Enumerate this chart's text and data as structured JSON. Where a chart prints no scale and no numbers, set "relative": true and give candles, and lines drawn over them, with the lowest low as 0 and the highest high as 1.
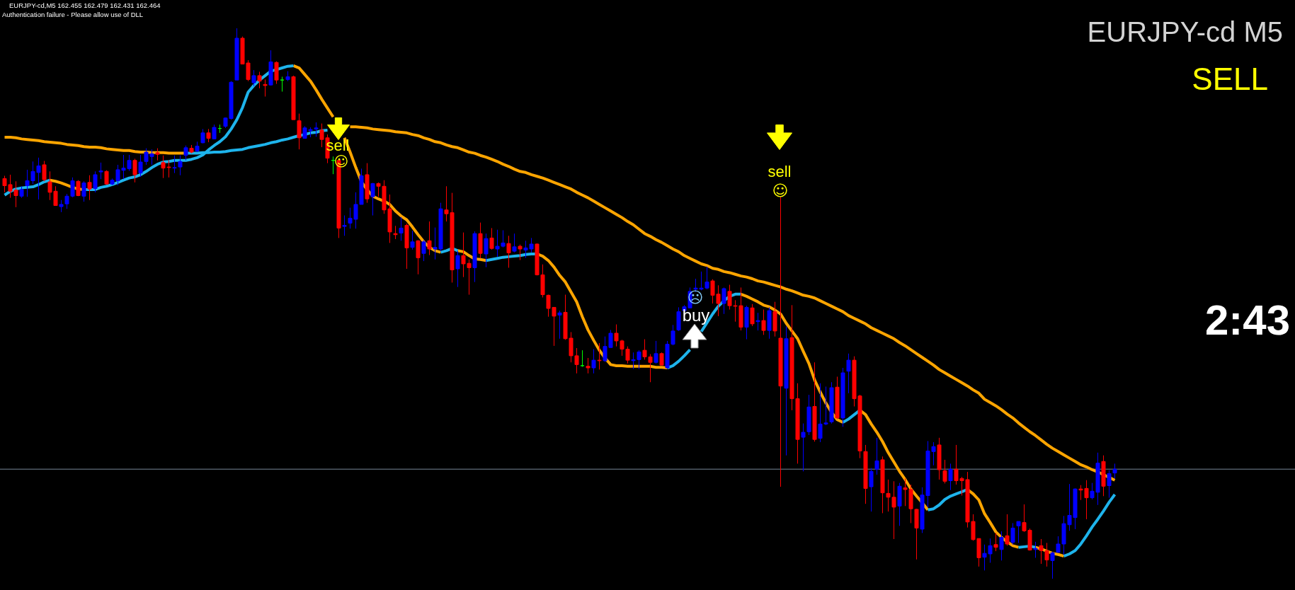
{
  "chart_data": {
    "type": "candlestick",
    "title": "EURJPY-cd M5",
    "annotations": [
      "EURJPY-cd,M5 162.455 162.479 162.431 162.464",
      "Authentication failure - Please allow use of DLL",
      "SELL",
      "2:43",
      "sell",
      "☺",
      "sell",
      "☺",
      "☹",
      "buy"
    ],
    "relative": true,
    "categories": [
      null,
      null,
      null,
      null,
      null,
      null,
      null,
      null,
      null,
      null,
      null,
      null,
      null,
      null,
      null,
      null,
      null,
      null,
      null,
      null,
      null,
      null,
      null,
      null,
      null,
      null,
      null,
      null,
      null,
      null,
      null,
      null,
      null,
      null,
      null,
      null,
      null,
      null,
      null,
      null,
      null,
      null,
      null,
      null,
      null,
      null,
      null,
      null,
      null,
      null,
      null,
      null,
      null,
      null,
      null,
      null,
      null,
      null,
      null,
      null,
      null,
      null,
      null,
      null,
      null,
      null,
      null,
      null,
      null,
      null,
      null,
      null,
      null,
      null,
      null,
      null,
      null,
      null,
      null,
      null,
      null,
      null,
      null,
      null,
      null,
      null,
      null,
      null,
      null,
      null,
      null,
      null,
      null,
      null,
      null,
      null,
      null,
      null,
      null,
      null,
      null,
      null,
      null,
      null,
      null,
      null,
      null,
      null,
      null,
      null,
      null,
      null,
      null,
      null,
      null,
      null,
      null,
      null,
      null,
      null,
      null,
      null,
      null,
      null,
      null,
      null,
      null,
      null,
      null,
      null,
      null,
      null,
      null,
      null,
      null,
      null,
      null,
      null,
      null,
      null,
      null,
      null,
      null,
      null,
      null,
      null,
      null,
      null,
      null,
      null,
      null,
      null,
      null,
      null,
      null,
      null,
      null,
      null,
      null,
      null,
      null,
      null,
      null,
      null,
      null,
      null,
      null,
      null,
      null,
      null,
      null,
      null,
      null,
      null,
      null,
      null,
      null,
      null,
      null,
      null,
      null,
      null,
      null,
      null,
      null,
      null,
      null,
      null,
      null,
      null,
      null,
      null,
      null,
      null,
      null,
      null,
      null
    ],
    "ohlc": [
      [
        0.727,
        0.732,
        0.702,
        0.714
      ],
      [
        0.716,
        0.734,
        0.692,
        0.704
      ],
      [
        0.706,
        0.722,
        0.675,
        0.696
      ],
      [
        0.695,
        0.713,
        0.692,
        0.707
      ],
      [
        0.714,
        0.743,
        0.694,
        0.723
      ],
      [
        0.723,
        0.758,
        0.717,
        0.74
      ],
      [
        0.738,
        0.765,
        0.689,
        0.75
      ],
      [
        0.752,
        0.759,
        0.722,
        0.725
      ],
      [
        0.721,
        0.74,
        0.688,
        0.702
      ],
      [
        0.704,
        0.713,
        0.678,
        0.678
      ],
      [
        0.676,
        0.688,
        0.666,
        0.68
      ],
      [
        0.681,
        0.699,
        0.672,
        0.695
      ],
      [
        0.695,
        0.729,
        0.693,
        0.723
      ],
      [
        0.722,
        0.724,
        0.695,
        0.696
      ],
      [
        0.695,
        0.722,
        0.685,
        0.719
      ],
      [
        0.72,
        0.733,
        0.688,
        0.708
      ],
      [
        0.709,
        0.74,
        0.702,
        0.734
      ],
      [
        0.739,
        0.756,
        0.726,
        0.741
      ],
      [
        0.74,
        0.742,
        0.716,
        0.717
      ],
      [
        0.717,
        0.727,
        0.715,
        0.724
      ],
      [
        0.723,
        0.752,
        0.715,
        0.743
      ],
      [
        0.742,
        0.77,
        0.726,
        0.746
      ],
      [
        0.745,
        0.77,
        0.741,
        0.76
      ],
      [
        0.76,
        0.763,
        0.72,
        0.734
      ],
      [
        0.737,
        0.77,
        0.73,
        0.757
      ],
      [
        0.758,
        0.782,
        0.752,
        0.775
      ],
      [
        0.767,
        0.78,
        0.752,
        0.772
      ],
      [
        0.774,
        0.782,
        0.76,
        0.771
      ],
      [
        0.756,
        0.769,
        0.728,
        0.746
      ],
      [
        0.748,
        0.76,
        0.729,
        0.747
      ],
      [
        0.746,
        0.769,
        0.737,
        0.747
      ],
      [
        0.748,
        0.769,
        0.733,
        0.758
      ],
      [
        0.769,
        0.787,
        0.76,
        0.783
      ],
      [
        0.782,
        0.788,
        0.773,
        0.775
      ],
      [
        0.777,
        0.794,
        0.775,
        0.786
      ],
      [
        0.792,
        0.817,
        0.791,
        0.81
      ],
      [
        0.81,
        0.817,
        0.793,
        0.8
      ],
      [
        0.799,
        0.825,
        0.799,
        0.82
      ],
      [
        0.818,
        0.825,
        0.81,
        0.818
      ],
      [
        0.822,
        0.838,
        0.819,
        0.837
      ],
      [
        0.836,
        0.904,
        0.834,
        0.902
      ],
      [
        0.906,
        1.0,
        0.906,
        0.982
      ],
      [
        0.982,
        0.985,
        0.935,
        0.935
      ],
      [
        0.937,
        0.942,
        0.904,
        0.907
      ],
      [
        0.901,
        0.924,
        0.895,
        0.914
      ],
      [
        0.914,
        0.921,
        0.891,
        0.904
      ],
      [
        0.898,
        0.907,
        0.876,
        0.896
      ],
      [
        0.897,
        0.96,
        0.896,
        0.939
      ],
      [
        0.938,
        0.94,
        0.899,
        0.906
      ],
      [
        0.906,
        0.912,
        0.885,
        0.906
      ],
      [
        0.907,
        0.922,
        0.904,
        0.912
      ],
      [
        0.912,
        0.914,
        0.834,
        0.834
      ],
      [
        0.832,
        0.845,
        0.78,
        0.801
      ],
      [
        0.8,
        0.822,
        0.8,
        0.819
      ],
      [
        0.814,
        0.82,
        0.802,
        0.816
      ],
      [
        0.817,
        0.829,
        0.803,
        0.819
      ],
      [
        0.815,
        0.827,
        0.784,
        0.798
      ],
      [
        0.801,
        0.807,
        0.755,
        0.764
      ],
      [
        0.76,
        0.767,
        0.735,
        0.76
      ],
      [
        0.76,
        0.761,
        0.619,
        0.637
      ],
      [
        0.64,
        0.66,
        0.623,
        0.642
      ],
      [
        0.646,
        0.674,
        0.636,
        0.655
      ],
      [
        0.653,
        0.702,
        0.636,
        0.68
      ],
      [
        0.68,
        0.745,
        0.68,
        0.732
      ],
      [
        0.734,
        0.755,
        0.683,
        0.69
      ],
      [
        0.694,
        0.719,
        0.66,
        0.718
      ],
      [
        0.718,
        0.72,
        0.694,
        0.713
      ],
      [
        0.713,
        0.724,
        0.663,
        0.67
      ],
      [
        0.672,
        0.698,
        0.61,
        0.63
      ],
      [
        0.627,
        0.641,
        0.617,
        0.625
      ],
      [
        0.628,
        0.657,
        0.614,
        0.637
      ],
      [
        0.642,
        0.645,
        0.563,
        0.601
      ],
      [
        0.602,
        0.632,
        0.598,
        0.612
      ],
      [
        0.614,
        0.615,
        0.553,
        0.583
      ],
      [
        0.591,
        0.615,
        0.577,
        0.612
      ],
      [
        0.614,
        0.649,
        0.588,
        0.599
      ],
      [
        0.599,
        0.638,
        0.58,
        0.602
      ],
      [
        0.599,
        0.683,
        0.595,
        0.672
      ],
      [
        0.67,
        0.713,
        0.649,
        0.663
      ],
      [
        0.665,
        0.701,
        0.538,
        0.561
      ],
      [
        0.563,
        0.595,
        0.53,
        0.587
      ],
      [
        0.587,
        0.629,
        0.548,
        0.572
      ],
      [
        0.573,
        0.58,
        0.516,
        0.565
      ],
      [
        0.565,
        0.631,
        0.539,
        0.627
      ],
      [
        0.627,
        0.647,
        0.582,
        0.591
      ],
      [
        0.59,
        0.627,
        0.566,
        0.618
      ],
      [
        0.619,
        0.637,
        0.598,
        0.6
      ],
      [
        0.599,
        0.634,
        0.585,
        0.604
      ],
      [
        0.604,
        0.633,
        0.602,
        0.61
      ],
      [
        0.609,
        0.623,
        0.565,
        0.592
      ],
      [
        0.595,
        0.627,
        0.593,
        0.603
      ],
      [
        0.604,
        0.607,
        0.579,
        0.599
      ],
      [
        0.597,
        0.614,
        0.583,
        0.601
      ],
      [
        0.599,
        0.619,
        0.593,
        0.608
      ],
      [
        0.608,
        0.609,
        0.551,
        0.552
      ],
      [
        0.552,
        0.571,
        0.511,
        0.516
      ],
      [
        0.515,
        0.516,
        0.476,
        0.491
      ],
      [
        0.493,
        0.493,
        0.423,
        0.477
      ],
      [
        0.479,
        0.487,
        0.436,
        0.483
      ],
      [
        0.484,
        0.516,
        0.434,
        0.436
      ],
      [
        0.437,
        0.448,
        0.393,
        0.405
      ],
      [
        0.405,
        0.419,
        0.373,
        0.389
      ],
      [
        0.387,
        0.415,
        0.385,
        0.387
      ],
      [
        0.386,
        0.401,
        0.373,
        0.383
      ],
      [
        0.383,
        0.417,
        0.373,
        0.397
      ],
      [
        0.397,
        0.428,
        0.38,
        0.396
      ],
      [
        0.396,
        0.44,
        0.394,
        0.422
      ],
      [
        0.42,
        0.452,
        0.42,
        0.446
      ],
      [
        0.446,
        0.462,
        0.422,
        0.432
      ],
      [
        0.432,
        0.434,
        0.405,
        0.417
      ],
      [
        0.417,
        0.422,
        0.391,
        0.397
      ],
      [
        0.396,
        0.411,
        0.381,
        0.398
      ],
      [
        0.398,
        0.415,
        0.381,
        0.412
      ],
      [
        0.415,
        0.435,
        0.398,
        0.403
      ],
      [
        0.403,
        0.408,
        0.357,
        0.393
      ],
      [
        0.393,
        0.432,
        0.391,
        0.409
      ],
      [
        0.409,
        0.411,
        0.388,
        0.388
      ],
      [
        0.383,
        0.432,
        0.382,
        0.426
      ],
      [
        0.426,
        0.461,
        0.424,
        0.45
      ],
      [
        0.452,
        0.493,
        0.45,
        0.485
      ],
      [
        0.487,
        0.497,
        0.486,
        0.494
      ],
      [
        0.492,
        0.529,
        0.492,
        0.522
      ],
      [
        0.526,
        0.545,
        0.521,
        0.528
      ],
      [
        0.526,
        0.558,
        0.524,
        0.528
      ],
      [
        0.528,
        0.567,
        0.526,
        0.539
      ],
      [
        0.541,
        0.544,
        0.5,
        0.515
      ],
      [
        0.517,
        0.533,
        0.477,
        0.5
      ],
      [
        0.5,
        0.529,
        0.481,
        0.527
      ],
      [
        0.522,
        0.534,
        0.489,
        0.496
      ],
      [
        0.496,
        0.506,
        0.467,
        0.495
      ],
      [
        0.496,
        0.529,
        0.451,
        0.457
      ],
      [
        0.457,
        0.496,
        0.435,
        0.493
      ],
      [
        0.492,
        0.499,
        0.459,
        0.463
      ],
      [
        0.467,
        0.483,
        0.451,
        0.469
      ],
      [
        0.469,
        0.489,
        0.443,
        0.451
      ],
      [
        0.451,
        0.493,
        0.436,
        0.487
      ],
      [
        0.485,
        0.503,
        0.44,
        0.45
      ],
      [
        0.437,
        0.694,
        0.167,
        0.35
      ],
      [
        0.346,
        0.458,
        0.224,
        0.436
      ],
      [
        0.438,
        0.497,
        0.306,
        0.327
      ],
      [
        0.327,
        0.355,
        0.209,
        0.253
      ],
      [
        0.257,
        0.282,
        0.195,
        0.266
      ],
      [
        0.267,
        0.334,
        0.261,
        0.312
      ],
      [
        0.313,
        0.393,
        0.249,
        0.253
      ],
      [
        0.255,
        0.355,
        0.248,
        0.281
      ],
      [
        0.281,
        0.349,
        0.279,
        0.283
      ],
      [
        0.285,
        0.357,
        0.282,
        0.347
      ],
      [
        0.348,
        0.367,
        0.29,
        0.292
      ],
      [
        0.292,
        0.383,
        0.276,
        0.374
      ],
      [
        0.377,
        0.409,
        0.337,
        0.397
      ],
      [
        0.397,
        0.404,
        0.313,
        0.327
      ],
      [
        0.332,
        0.334,
        0.219,
        0.232
      ],
      [
        0.231,
        0.243,
        0.136,
        0.164
      ],
      [
        0.167,
        0.201,
        0.122,
        0.195
      ],
      [
        0.199,
        0.256,
        0.189,
        0.214
      ],
      [
        0.216,
        0.222,
        0.119,
        0.156
      ],
      [
        0.155,
        0.18,
        0.122,
        0.148
      ],
      [
        0.148,
        0.177,
        0.072,
        0.13
      ],
      [
        0.132,
        0.174,
        0.096,
        0.168
      ],
      [
        0.165,
        0.182,
        0.132,
        0.162
      ],
      [
        0.162,
        0.171,
        0.101,
        0.127
      ],
      [
        0.126,
        0.127,
        0.035,
        0.092
      ],
      [
        0.09,
        0.166,
        0.083,
        0.152
      ],
      [
        0.151,
        0.25,
        0.13,
        0.232
      ],
      [
        0.231,
        0.248,
        0.206,
        0.24
      ],
      [
        0.243,
        0.256,
        0.18,
        0.198
      ],
      [
        0.196,
        0.216,
        0.173,
        0.177
      ],
      [
        0.178,
        0.209,
        0.161,
        0.199
      ],
      [
        0.199,
        0.243,
        0.171,
        0.178
      ],
      [
        0.182,
        0.185,
        0.151,
        0.178
      ],
      [
        0.18,
        0.194,
        0.093,
        0.103
      ],
      [
        0.104,
        0.117,
        0.069,
        0.071
      ],
      [
        0.073,
        0.073,
        0.022,
        0.038
      ],
      [
        0.039,
        0.062,
        0.015,
        0.046
      ],
      [
        0.045,
        0.073,
        0.029,
        0.06
      ],
      [
        0.062,
        0.083,
        0.05,
        0.057
      ],
      [
        0.053,
        0.086,
        0.033,
        0.075
      ],
      [
        0.078,
        0.117,
        0.06,
        0.063
      ],
      [
        0.066,
        0.101,
        0.062,
        0.092
      ],
      [
        0.096,
        0.104,
        0.065,
        0.104
      ],
      [
        0.102,
        0.135,
        0.085,
        0.087
      ],
      [
        0.088,
        0.091,
        0.051,
        0.052
      ],
      [
        0.053,
        0.067,
        0.038,
        0.055
      ],
      [
        0.06,
        0.072,
        0.027,
        0.051
      ],
      [
        0.051,
        0.065,
        0.022,
        0.034
      ],
      [
        0.033,
        0.049,
        0.0,
        0.047
      ],
      [
        0.048,
        0.077,
        0.047,
        0.063
      ],
      [
        0.063,
        0.114,
        0.044,
        0.1
      ],
      [
        0.098,
        0.172,
        0.087,
        0.115
      ],
      [
        0.111,
        0.164,
        0.09,
        0.163
      ],
      [
        0.163,
        0.17,
        0.143,
        0.161
      ],
      [
        0.164,
        0.179,
        0.108,
        0.147
      ],
      [
        0.147,
        0.174,
        0.144,
        0.159
      ],
      [
        0.157,
        0.229,
        0.134,
        0.21
      ],
      [
        0.213,
        0.224,
        0.15,
        0.168
      ],
      [
        0.169,
        0.197,
        0.147,
        0.191
      ],
      [
        0.192,
        0.209,
        0.182,
        0.199
      ]
    ],
    "colors": [
      "#ff0000",
      "#ff0000",
      "#ff0000",
      "#0000ff",
      "#0000ff",
      "#0000ff",
      "#0000ff",
      "#ff0000",
      "#ff0000",
      "#ff0000",
      "#0000ff",
      "#0000ff",
      "#0000ff",
      "#ff0000",
      "#0000ff",
      "#ff0000",
      "#0000ff",
      "#0000ff",
      "#ff0000",
      "#0000ff",
      "#0000ff",
      "#0000ff",
      "#0000ff",
      "#ff0000",
      "#0000ff",
      "#0000ff",
      "#0000ff",
      "#ff0000",
      "#ff0000",
      "#ff0000",
      "#0000ff",
      "#0000ff",
      "#0000ff",
      "#ff0000",
      "#0000ff",
      "#0000ff",
      "#ff0000",
      "#0000ff",
      "#00ff00",
      "#0000ff",
      "#0000ff",
      "#0000ff",
      "#ff0000",
      "#ff0000",
      "#0000ff",
      "#ff0000",
      "#ff0000",
      "#0000ff",
      "#ff0000",
      "#00ff00",
      "#0000ff",
      "#ff0000",
      "#ff0000",
      "#0000ff",
      "#0000ff",
      "#0000ff",
      "#ff0000",
      "#ff0000",
      "#00ff00",
      "#ff0000",
      "#0000ff",
      "#0000ff",
      "#0000ff",
      "#0000ff",
      "#ff0000",
      "#0000ff",
      "#ff0000",
      "#ff0000",
      "#ff0000",
      "#ff0000",
      "#0000ff",
      "#ff0000",
      "#0000ff",
      "#ff0000",
      "#0000ff",
      "#ff0000",
      "#0000ff",
      "#0000ff",
      "#ff0000",
      "#ff0000",
      "#0000ff",
      "#ff0000",
      "#ff0000",
      "#0000ff",
      "#ff0000",
      "#0000ff",
      "#ff0000",
      "#0000ff",
      "#0000ff",
      "#ff0000",
      "#0000ff",
      "#ff0000",
      "#0000ff",
      "#0000ff",
      "#ff0000",
      "#ff0000",
      "#ff0000",
      "#ff0000",
      "#0000ff",
      "#ff0000",
      "#ff0000",
      "#ff0000",
      "#00ff00",
      "#ff0000",
      "#0000ff",
      "#ff0000",
      "#0000ff",
      "#0000ff",
      "#ff0000",
      "#ff0000",
      "#ff0000",
      "#0000ff",
      "#0000ff",
      "#ff0000",
      "#ff0000",
      "#0000ff",
      "#ff0000",
      "#0000ff",
      "#0000ff",
      "#0000ff",
      "#0000ff",
      "#0000ff",
      "#0000ff",
      "#0000ff",
      "#0000ff",
      "#ff0000",
      "#ff0000",
      "#0000ff",
      "#ff0000",
      "#ff0000",
      "#ff0000",
      "#0000ff",
      "#ff0000",
      "#0000ff",
      "#ff0000",
      "#0000ff",
      "#ff0000",
      "#ff0000",
      "#0000ff",
      "#ff0000",
      "#ff0000",
      "#0000ff",
      "#0000ff",
      "#ff0000",
      "#0000ff",
      "#0000ff",
      "#0000ff",
      "#ff0000",
      "#0000ff",
      "#0000ff",
      "#ff0000",
      "#ff0000",
      "#ff0000",
      "#0000ff",
      "#0000ff",
      "#ff0000",
      "#ff0000",
      "#ff0000",
      "#0000ff",
      "#ff0000",
      "#ff0000",
      "#ff0000",
      "#0000ff",
      "#0000ff",
      "#0000ff",
      "#ff0000",
      "#ff0000",
      "#0000ff",
      "#ff0000",
      "#ff0000",
      "#ff0000",
      "#ff0000",
      "#ff0000",
      "#0000ff",
      "#0000ff",
      "#ff0000",
      "#0000ff",
      "#ff0000",
      "#0000ff",
      "#0000ff",
      "#ff0000",
      "#ff0000",
      "#0000ff",
      "#ff0000",
      "#ff0000",
      "#0000ff",
      "#0000ff",
      "#0000ff",
      "#0000ff",
      "#0000ff",
      "#ff0000",
      "#ff0000",
      "#0000ff",
      "#0000ff",
      "#ff0000",
      "#0000ff",
      "#0000ff"
    ],
    "ref_lines": [
      {
        "axis": "y",
        "value": 0.199,
        "color": "#778899"
      }
    ],
    "series": [
      {
        "type": "line",
        "color": "#ffa500",
        "values": [
          0.802,
          0.802,
          0.801,
          0.799,
          0.798,
          0.797,
          0.796,
          0.794,
          0.793,
          0.792,
          0.791,
          0.789,
          0.788,
          0.787,
          0.785,
          0.784,
          0.784,
          0.783,
          0.781,
          0.78,
          0.779,
          0.778,
          0.778,
          0.776,
          0.775,
          0.775,
          0.774,
          0.774,
          0.774,
          0.773,
          0.773,
          0.773,
          0.773,
          null,
          null,
          null,
          null,
          null,
          null,
          null,
          null,
          null,
          null,
          null,
          null,
          null,
          null,
          null,
          null,
          null,
          null,
          null,
          null,
          null,
          null,
          null,
          null,
          null,
          null,
          null,
          null,
          0.821,
          0.821,
          0.82,
          0.819,
          0.817,
          0.816,
          0.815,
          0.814,
          0.812,
          0.811,
          0.81,
          0.807,
          0.805,
          0.801,
          0.798,
          0.794,
          0.792,
          0.788,
          0.785,
          0.783,
          0.779,
          0.775,
          0.773,
          0.769,
          0.766,
          0.762,
          0.758,
          0.753,
          0.749,
          0.744,
          0.74,
          0.738,
          0.734,
          0.731,
          0.728,
          0.724,
          0.72,
          0.716,
          0.712,
          0.708,
          0.702,
          0.697,
          0.692,
          0.686,
          0.68,
          0.674,
          0.668,
          0.662,
          0.656,
          0.649,
          0.643,
          0.635,
          0.627,
          0.622,
          0.616,
          0.611,
          0.605,
          0.599,
          0.594,
          0.587,
          0.582,
          0.577,
          0.572,
          0.569,
          0.564,
          0.562,
          0.558,
          0.556,
          0.553,
          0.55,
          0.548,
          0.545,
          0.541,
          0.539,
          0.536,
          0.533,
          0.53,
          0.526,
          0.523,
          0.519,
          0.515,
          0.513,
          0.51,
          0.505,
          0.5,
          0.495,
          0.49,
          0.485,
          0.478,
          0.473,
          0.468,
          0.463,
          0.456,
          0.451,
          0.446,
          0.441,
          0.436,
          0.429,
          0.423,
          0.416,
          0.409,
          0.402,
          0.395,
          0.388,
          0.38,
          0.374,
          0.368,
          0.362,
          0.356,
          0.35,
          0.343,
          0.337,
          0.326,
          0.32,
          0.314,
          0.307,
          0.299,
          0.292,
          0.283,
          0.275,
          0.267,
          0.26,
          0.252,
          0.244,
          0.237,
          0.231,
          0.225,
          0.219,
          0.213,
          0.207,
          0.203,
          0.198,
          0.194,
          0.189,
          0.184,
          0.179
        ]
      },
      {
        "type": "line",
        "color": "#ffa500",
        "values": [
          null,
          null,
          null,
          null,
          null,
          null,
          null,
          null,
          0.724,
          0.722,
          0.719,
          0.715,
          0.711,
          0.708,
          0.707,
          null,
          null,
          null,
          null,
          null,
          null,
          null,
          null,
          null,
          null,
          null,
          null,
          null,
          null,
          null,
          null,
          null,
          null,
          null,
          null,
          null,
          null,
          null,
          null,
          null,
          null,
          null,
          null,
          null,
          null,
          null,
          null,
          null,
          null,
          null,
          null,
          0.932,
          0.928,
          0.916,
          0.904,
          0.888,
          0.871,
          0.855,
          0.839,
          null,
          0.801,
          0.775,
          0.747,
          0.721,
          0.707,
          0.695,
          0.69,
          0.686,
          0.68,
          0.668,
          0.659,
          0.652,
          0.639,
          0.625,
          0.612,
          0.602,
          0.596,
          0.593,
          null,
          null,
          0.596,
          0.594,
          0.587,
          0.581,
          0.58,
          0.578,
          null,
          null,
          null,
          null,
          null,
          null,
          null,
          null,
          0.59,
          0.586,
          0.578,
          0.566,
          0.551,
          0.539,
          0.521,
          0.503,
          0.476,
          0.452,
          0.433,
          0.415,
          0.401,
          0.389,
          0.387,
          0.387,
          0.386,
          0.386,
          0.386,
          0.386,
          0.386,
          0.384,
          0.384,
          0.383,
          null,
          null,
          null,
          null,
          null,
          null,
          null,
          null,
          null,
          null,
          null,
          null,
          0.517,
          0.513,
          0.508,
          0.503,
          0.497,
          0.494,
          0.488,
          0.481,
          0.464,
          0.45,
          0.436,
          0.413,
          0.391,
          0.361,
          0.339,
          0.319,
          0.302,
          0.289,
          0.284,
          null,
          null,
          0.306,
          0.298,
          0.281,
          0.266,
          0.249,
          0.229,
          0.212,
          0.195,
          0.18,
          0.163,
          0.15,
          0.138,
          0.125,
          null,
          null,
          null,
          null,
          null,
          null,
          0.162,
          0.154,
          0.143,
          0.118,
          0.102,
          0.085,
          0.075,
          0.067,
          0.06,
          0.057,
          null,
          null,
          0.057,
          0.054,
          0.05,
          0.046,
          0.044,
          0.041,
          null,
          null,
          null,
          null,
          null,
          null,
          null,
          null,
          null
        ]
      },
      {
        "type": "line",
        "color": "#1eb4ec",
        "values": [
          null,
          null,
          null,
          null,
          null,
          null,
          null,
          null,
          null,
          null,
          null,
          null,
          null,
          null,
          null,
          null,
          null,
          null,
          null,
          null,
          null,
          null,
          null,
          null,
          null,
          null,
          null,
          null,
          null,
          null,
          null,
          null,
          0.773,
          0.773,
          0.773,
          0.774,
          0.774,
          0.775,
          0.775,
          0.776,
          0.778,
          0.779,
          0.78,
          0.783,
          0.785,
          0.787,
          0.789,
          0.792,
          0.794,
          0.797,
          0.799,
          0.802,
          0.805,
          0.807,
          0.81,
          0.811,
          0.814,
          0.815,
          null,
          null,
          null,
          null,
          null,
          null,
          null,
          null,
          null,
          null,
          null,
          null,
          null,
          null,
          null,
          null,
          null,
          null,
          null,
          null,
          null,
          null,
          null,
          null,
          null,
          null,
          null,
          null,
          null,
          null,
          null,
          null,
          null,
          null,
          null,
          null,
          null,
          null,
          null,
          null,
          null,
          null,
          null,
          null,
          null,
          null,
          null,
          null,
          null,
          null,
          null,
          null,
          null,
          null,
          null,
          null,
          null,
          null,
          null,
          null,
          null,
          null,
          null,
          null,
          null,
          null,
          null,
          null,
          null,
          null,
          null,
          null,
          null,
          null,
          null,
          null,
          null,
          null,
          null,
          null,
          null,
          null,
          null,
          null,
          null,
          null,
          null,
          null,
          null,
          null,
          null,
          null,
          null,
          null,
          null,
          null,
          null,
          null,
          null,
          null,
          null,
          null,
          null,
          null,
          null,
          null,
          null,
          null,
          null,
          null,
          null,
          null,
          null,
          null,
          null,
          null,
          null,
          null,
          null,
          null,
          null,
          null,
          null,
          null,
          null,
          null,
          null,
          null,
          null,
          null,
          null,
          null,
          null,
          null,
          null,
          null,
          null,
          null,
          null
        ]
      },
      {
        "type": "line",
        "color": "#1eb4ec",
        "values": [
          0.697,
          0.704,
          0.708,
          0.71,
          0.711,
          0.712,
          0.716,
          0.721,
          0.724,
          null,
          null,
          null,
          null,
          null,
          0.707,
          0.707,
          0.707,
          0.711,
          0.713,
          0.716,
          0.72,
          0.724,
          0.728,
          0.73,
          0.734,
          0.74,
          0.747,
          0.753,
          0.757,
          0.758,
          0.76,
          0.76,
          0.76,
          0.762,
          0.765,
          0.77,
          0.779,
          0.787,
          0.794,
          0.803,
          0.817,
          0.834,
          0.856,
          0.884,
          0.896,
          0.906,
          0.914,
          0.922,
          0.925,
          0.928,
          0.931,
          0.932,
          null,
          null,
          null,
          null,
          null,
          null,
          null,
          null,
          null,
          null,
          null,
          null,
          null,
          null,
          null,
          null,
          null,
          null,
          null,
          null,
          null,
          null,
          null,
          null,
          null,
          0.593,
          0.596,
          0.6,
          0.596,
          null,
          null,
          null,
          null,
          0.578,
          0.58,
          0.582,
          0.584,
          0.585,
          0.586,
          0.587,
          0.589,
          0.59,
          0.59,
          null,
          null,
          null,
          null,
          null,
          null,
          null,
          null,
          null,
          null,
          null,
          null,
          null,
          null,
          null,
          null,
          null,
          null,
          null,
          null,
          null,
          null,
          0.383,
          0.387,
          0.395,
          0.405,
          0.416,
          null,
          0.449,
          0.465,
          0.481,
          0.495,
          0.505,
          0.513,
          0.517,
          0.517,
          null,
          null,
          null,
          null,
          null,
          null,
          null,
          null,
          null,
          null,
          null,
          null,
          null,
          null,
          null,
          null,
          null,
          0.284,
          0.29,
          0.298,
          0.306,
          null,
          null,
          null,
          null,
          null,
          null,
          null,
          null,
          null,
          null,
          null,
          0.125,
          0.127,
          0.134,
          0.144,
          0.15,
          0.154,
          0.158,
          0.162,
          null,
          null,
          null,
          null,
          null,
          null,
          null,
          null,
          0.057,
          0.058,
          0.059,
          0.057,
          null,
          null,
          null,
          null,
          0.041,
          0.045,
          0.051,
          0.063,
          0.078,
          0.094,
          0.108,
          0.123,
          0.139,
          0.153
        ]
      }
    ]
  }
}
